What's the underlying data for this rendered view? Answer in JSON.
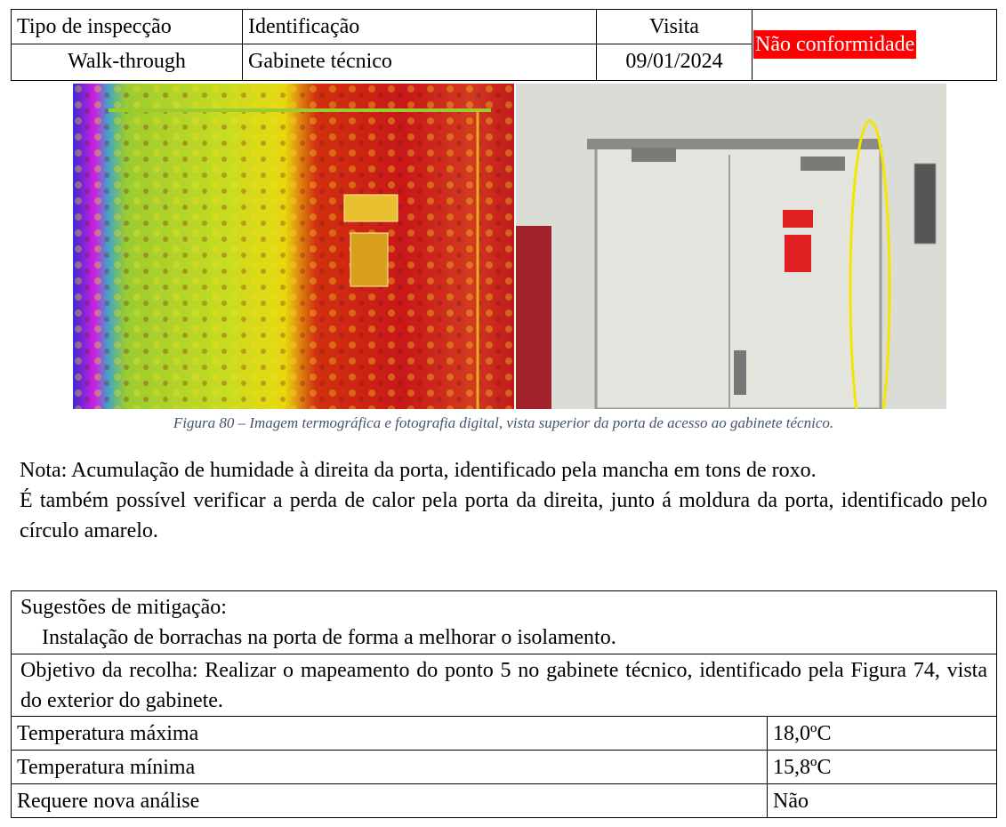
{
  "header": {
    "columns": [
      "Tipo de inspecção",
      "Identificação",
      "Visita"
    ],
    "values": [
      "Walk-through",
      "Gabinete técnico",
      "09/01/2024"
    ],
    "status": "Não conformidade"
  },
  "figure": {
    "caption": "Figura 80 – Imagem termográfica e fotografia digital, vista superior da porta de acesso ao gabinete técnico."
  },
  "note": [
    "Nota: Acumulação de humidade à direita da porta, identificado pela mancha em tons de roxo.",
    "É também possível verificar a perda de calor pela porta da direita, junto á moldura da porta, identificado pelo círculo amarelo."
  ],
  "mitigation": {
    "title": "Sugestões de mitigação:",
    "text": "Instalação de borrachas na porta de forma a melhorar o isolamento."
  },
  "objective": "Objetivo da recolha: Realizar o mapeamento do ponto 5 no gabinete técnico, identificado pela Figura 74, vista do exterior do gabinete.",
  "table": {
    "rows": [
      [
        "Temperatura máxima",
        "18,0ºC"
      ],
      [
        "Temperatura mínima",
        "15,8ºC"
      ],
      [
        "Requere nova análise",
        "Não"
      ]
    ]
  }
}
